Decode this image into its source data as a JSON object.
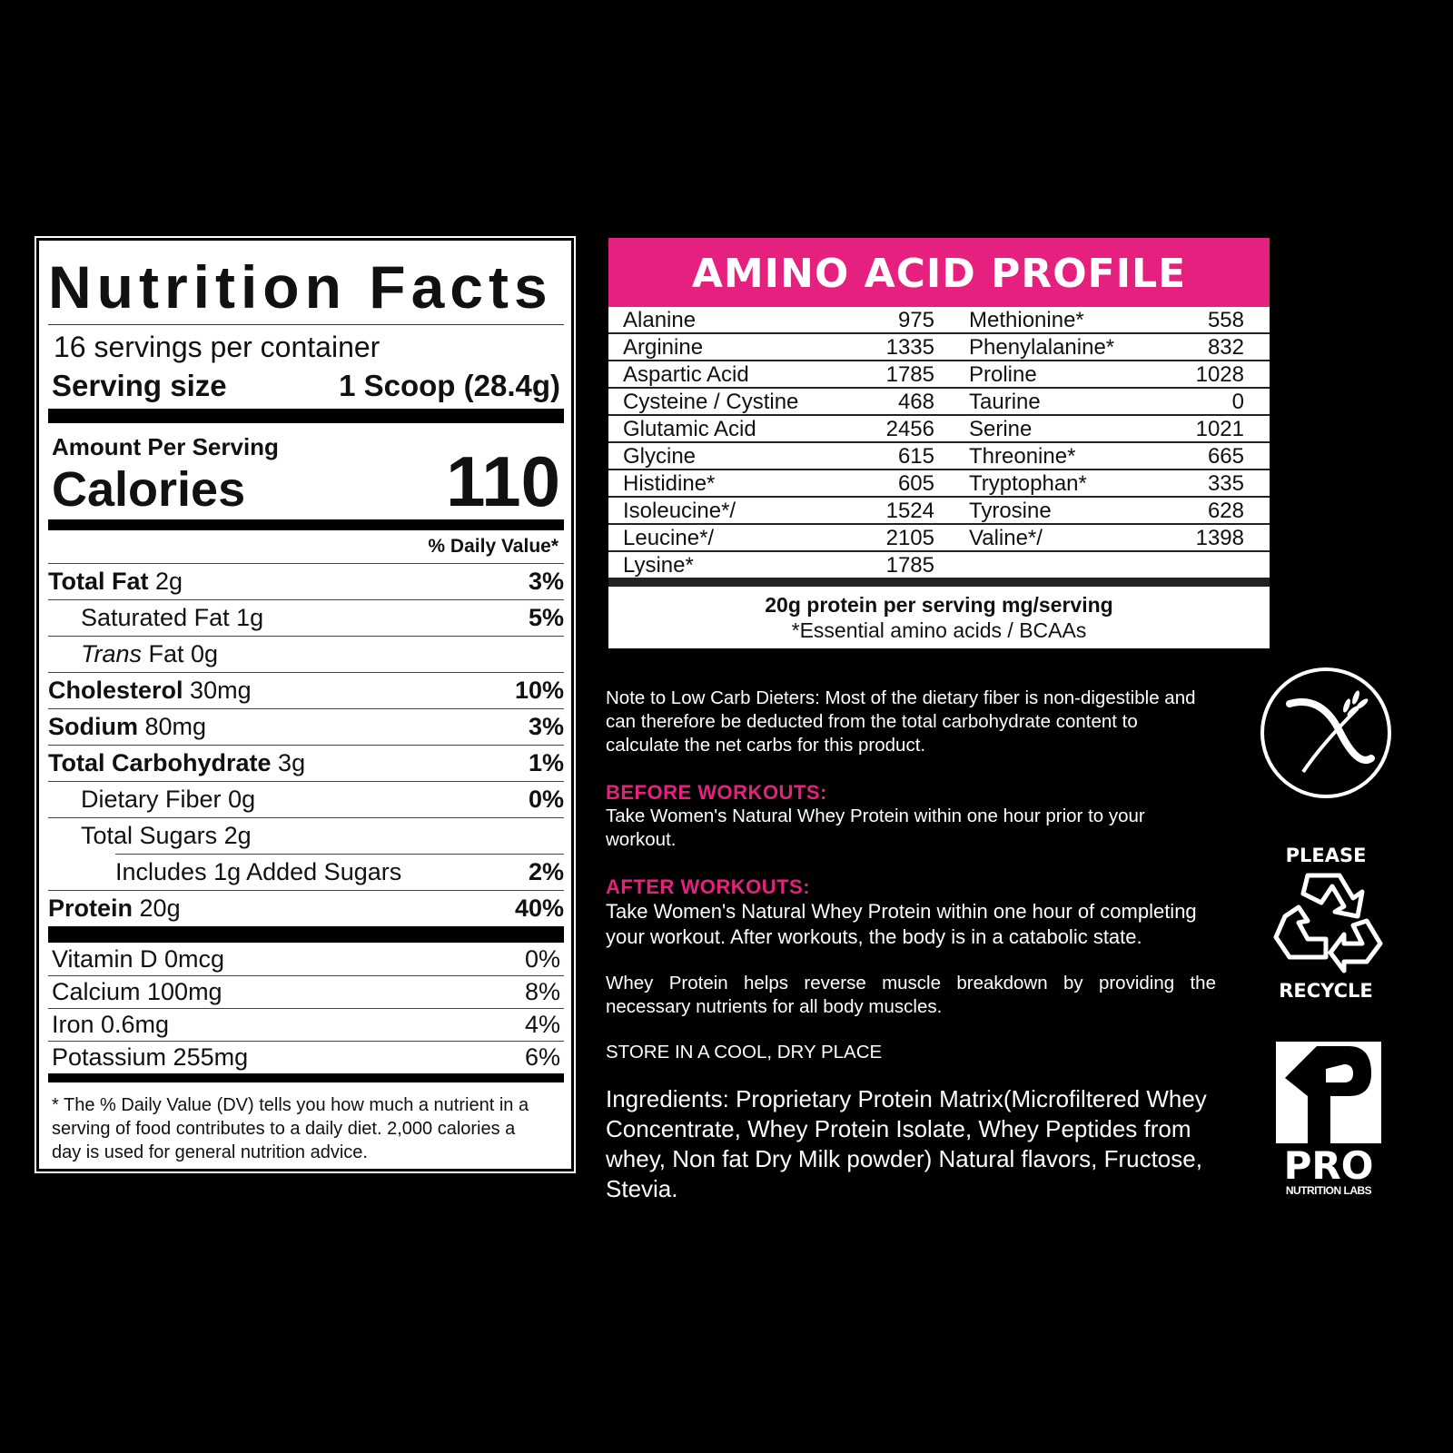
{
  "nutrition": {
    "title": "Nutrition Facts",
    "servings": "16 servings per container",
    "serving_size_label": "Serving size",
    "serving_size_value": "1 Scoop (28.4g)",
    "amount_per_serving": "Amount Per Serving",
    "calories_label": "Calories",
    "calories_value": "110",
    "dv_header": "% Daily Value*",
    "rows": [
      {
        "label": "Total Fat",
        "amount": "2g",
        "dv": "3%",
        "bold": true,
        "indent": 0
      },
      {
        "label": "Saturated Fat",
        "amount": "1g",
        "dv": "5%",
        "bold": false,
        "indent": 1
      },
      {
        "label": "Trans",
        "amount": "Fat 0g",
        "dv": "",
        "bold": false,
        "indent": 1,
        "italic": true
      },
      {
        "label": "Cholesterol",
        "amount": "30mg",
        "dv": "10%",
        "bold": true,
        "indent": 0
      },
      {
        "label": "Sodium",
        "amount": "80mg",
        "dv": "3%",
        "bold": true,
        "indent": 0
      },
      {
        "label": "Total Carbohydrate",
        "amount": "3g",
        "dv": "1%",
        "bold": true,
        "indent": 0
      },
      {
        "label": "Dietary Fiber",
        "amount": "0g",
        "dv": "0%",
        "bold": false,
        "indent": 1
      },
      {
        "label": "Total Sugars",
        "amount": "2g",
        "dv": "",
        "bold": false,
        "indent": 1
      },
      {
        "label": "Includes 1g Added Sugars",
        "amount": "",
        "dv": "2%",
        "bold": false,
        "indent": 2
      },
      {
        "label": "Protein",
        "amount": "20g",
        "dv": "40%",
        "bold": true,
        "indent": 0
      }
    ],
    "vitamins": [
      {
        "label": "Vitamin D 0mcg",
        "dv": "0%"
      },
      {
        "label": "Calcium 100mg",
        "dv": "8%"
      },
      {
        "label": "Iron 0.6mg",
        "dv": "4%"
      },
      {
        "label": "Potassium 255mg",
        "dv": "6%"
      }
    ],
    "footnote": "The % Daily Value (DV) tells you how much a nutrient in a serving of food contributes to a daily diet. 2,000 calories a day is used for general nutrition advice."
  },
  "amino": {
    "title": "AMINO ACID PROFILE",
    "rows": [
      [
        "Alanine",
        "975",
        "Methionine*",
        "558"
      ],
      [
        "Arginine",
        "1335",
        "Phenylalanine*",
        "832"
      ],
      [
        "Aspartic Acid",
        "1785",
        "Proline",
        "1028"
      ],
      [
        "Cysteine / Cystine",
        "468",
        "Taurine",
        "0"
      ],
      [
        "Glutamic Acid",
        "2456",
        "Serine",
        "1021"
      ],
      [
        "Glycine",
        "615",
        "Threonine*",
        "665"
      ],
      [
        "Histidine*",
        "605",
        "Tryptophan*",
        "335"
      ],
      [
        "Isoleucine*/",
        "1524",
        "Tyrosine",
        "628"
      ],
      [
        "Leucine*/",
        "2105",
        "Valine*/",
        "1398"
      ],
      [
        "Lysine*",
        "1785",
        "",
        ""
      ]
    ],
    "footer1": "20g protein per serving mg/serving",
    "footer2": "*Essential amino acids  /  BCAAs",
    "accent": "#e5207f"
  },
  "notes": {
    "low_carb": "Note to Low Carb Dieters: Most of the dietary fiber is non-digestible and can therefore be deducted from the total carbohydrate content to calculate the net carbs for this product.",
    "before_title": "BEFORE WORKOUTS:",
    "before_text": "Take Women's Natural Whey Protein within one hour prior to your workout.",
    "after_title": "AFTER WORKOUTS:",
    "after_text": "Take Women's Natural Whey Protein within one hour of completing your workout. After workouts, the body is in a catabolic state.",
    "whey": "Whey Protein helps reverse muscle breakdown by providing the necessary nutrients for all body muscles.",
    "store": "STORE IN A COOL, DRY PLACE",
    "ingredients": "Ingredients: Proprietary Protein Matrix(Microfiltered Whey Concentrate, Whey Protein Isolate, Whey Peptides from whey, Non fat Dry Milk powder) Natural flavors, Fructose, Stevia."
  },
  "icons": {
    "gluten_free": "gluten-free-icon",
    "recycle_top": "PLEASE",
    "recycle_bottom": "RECYCLE",
    "brand": "PRO",
    "brand_sub": "NUTRITION LABS"
  }
}
